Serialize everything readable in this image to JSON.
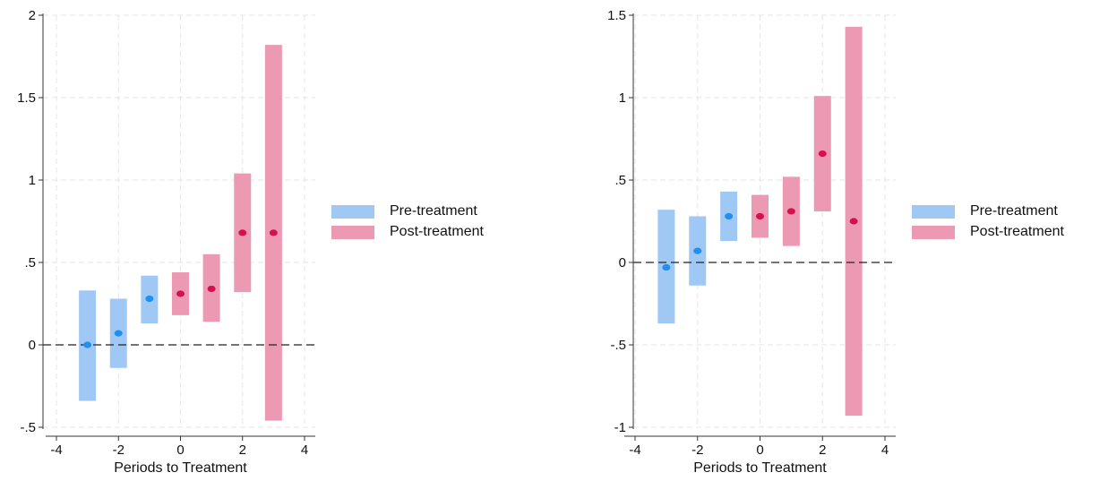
{
  "chart_data": [
    {
      "type": "scatter",
      "subtype": "event-study coefficients with confidence interval bars",
      "xlabel": "Periods to Treatment",
      "ylabel": "",
      "xlim": [
        -4,
        4
      ],
      "ylim": [
        -0.5,
        2
      ],
      "xticks": [
        -4,
        -2,
        0,
        2,
        4
      ],
      "yticks": [
        -0.5,
        0,
        0.5,
        1,
        1.5,
        2
      ],
      "ytick_labels": [
        "-.5",
        "0",
        ".5",
        "1",
        "1.5",
        "2"
      ],
      "reference_line_y": 0,
      "grid": true,
      "legend_position": "right",
      "series": [
        {
          "name": "Pre-treatment",
          "color": "#9fc8f5",
          "point_color": "#1f8ff0",
          "x": [
            -3,
            -2,
            -1
          ],
          "y": [
            0.0,
            0.07,
            0.28
          ],
          "ci_low": [
            -0.34,
            -0.14,
            0.13
          ],
          "ci_high": [
            0.33,
            0.28,
            0.42
          ]
        },
        {
          "name": "Post-treatment",
          "color": "#ec9ab3",
          "point_color": "#d6104f",
          "x": [
            0,
            1,
            2,
            3
          ],
          "y": [
            0.31,
            0.34,
            0.68,
            0.68
          ],
          "ci_low": [
            0.18,
            0.14,
            0.32,
            -0.46
          ],
          "ci_high": [
            0.44,
            0.55,
            1.04,
            1.82
          ]
        }
      ]
    },
    {
      "type": "scatter",
      "subtype": "event-study coefficients with confidence interval bars",
      "xlabel": "Periods to Treatment",
      "ylabel": "",
      "xlim": [
        -4,
        4
      ],
      "ylim": [
        -1,
        1.5
      ],
      "xticks": [
        -4,
        -2,
        0,
        2,
        4
      ],
      "yticks": [
        -1,
        -0.5,
        0,
        0.5,
        1,
        1.5
      ],
      "ytick_labels": [
        "-1",
        "-.5",
        "0",
        ".5",
        "1",
        "1.5"
      ],
      "reference_line_y": 0,
      "grid": true,
      "legend_position": "right",
      "series": [
        {
          "name": "Pre-treatment",
          "color": "#9fc8f5",
          "point_color": "#1f8ff0",
          "x": [
            -3,
            -2,
            -1
          ],
          "y": [
            -0.03,
            0.07,
            0.28
          ],
          "ci_low": [
            -0.37,
            -0.14,
            0.13
          ],
          "ci_high": [
            0.32,
            0.28,
            0.43
          ]
        },
        {
          "name": "Post-treatment",
          "color": "#ec9ab3",
          "point_color": "#d6104f",
          "x": [
            0,
            1,
            2,
            3
          ],
          "y": [
            0.28,
            0.31,
            0.66,
            0.25
          ],
          "ci_low": [
            0.15,
            0.1,
            0.31,
            -0.93
          ],
          "ci_high": [
            0.41,
            0.52,
            1.01,
            1.43
          ]
        }
      ]
    }
  ]
}
